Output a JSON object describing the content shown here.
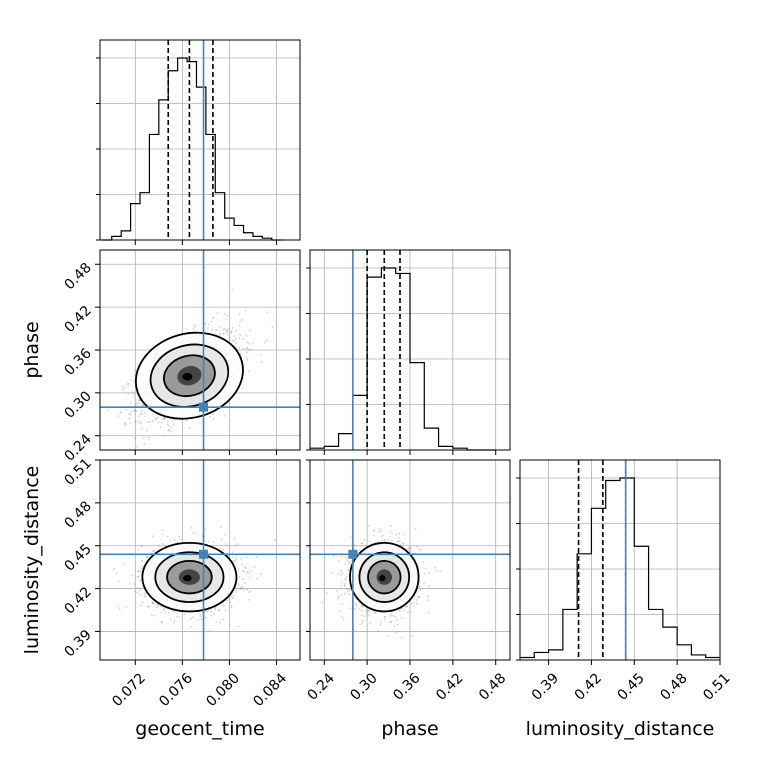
{
  "chart_data": {
    "type": "corner",
    "parameters": [
      "geocent_time",
      "phase",
      "luminosity_distance"
    ],
    "axis_labels": {
      "geocent_time": "geocent_time",
      "phase": "phase",
      "luminosity_distance": "luminosity_distance"
    },
    "ranges": {
      "geocent_time": [
        0.069,
        0.086
      ],
      "phase": [
        0.22,
        0.5
      ],
      "luminosity_distance": [
        0.37,
        0.51
      ]
    },
    "ticks": {
      "geocent_time": [
        "0.072",
        "0.076",
        "0.080",
        "0.084"
      ],
      "phase": [
        "0.24",
        "0.30",
        "0.36",
        "0.42",
        "0.48"
      ],
      "luminosity_distance": [
        "0.39",
        "0.42",
        "0.45",
        "0.48",
        "0.51"
      ]
    },
    "truths": {
      "geocent_time": 0.0778,
      "phase": 0.28,
      "luminosity_distance": 0.444
    },
    "quantiles": {
      "geocent_time": [
        0.0748,
        0.0766,
        0.0786
      ],
      "phase": [
        0.3,
        0.324,
        0.346
      ],
      "luminosity_distance": [
        0.411,
        0.428,
        0.444
      ]
    },
    "histograms": {
      "geocent_time": {
        "edges": [
          0.0692,
          0.07,
          0.0708,
          0.0716,
          0.0724,
          0.0732,
          0.074,
          0.0748,
          0.0756,
          0.0764,
          0.0772,
          0.078,
          0.0788,
          0.0796,
          0.0804,
          0.0812,
          0.082,
          0.0828,
          0.0836,
          0.0844
        ],
        "counts": [
          0,
          2,
          5,
          20,
          26,
          58,
          77,
          93,
          100,
          98,
          84,
          58,
          26,
          12,
          8,
          4,
          2,
          1,
          0
        ]
      },
      "phase": {
        "edges": [
          0.22,
          0.24,
          0.26,
          0.28,
          0.3,
          0.32,
          0.34,
          0.36,
          0.38,
          0.4,
          0.42,
          0.44,
          0.46,
          0.48
        ],
        "counts": [
          1,
          2,
          9,
          30,
          95,
          100,
          97,
          48,
          12,
          2,
          1,
          0,
          0
        ]
      },
      "luminosity_distance": {
        "edges": [
          0.37,
          0.38,
          0.39,
          0.4,
          0.41,
          0.42,
          0.43,
          0.44,
          0.45,
          0.46,
          0.47,
          0.48,
          0.49,
          0.5,
          0.51
        ],
        "counts": [
          1,
          3,
          4,
          20,
          42,
          60,
          71,
          72,
          45,
          20,
          13,
          6,
          2,
          1
        ]
      }
    },
    "panels_2d": [
      {
        "x": "geocent_time",
        "y": "phase",
        "center": [
          0.0766,
          0.324
        ],
        "spread": [
          0.0022,
          0.032
        ],
        "rho": 0.55
      },
      {
        "x": "geocent_time",
        "y": "luminosity_distance",
        "center": [
          0.0766,
          0.428
        ],
        "spread": [
          0.002,
          0.012
        ],
        "rho": 0.0
      },
      {
        "x": "phase",
        "y": "luminosity_distance",
        "center": [
          0.324,
          0.428
        ],
        "spread": [
          0.024,
          0.012
        ],
        "rho": 0.0
      }
    ],
    "colors": {
      "truth": "#4682b4",
      "hist": "#000000",
      "grid": "#b0b0b0",
      "scatter": "#808080"
    }
  }
}
